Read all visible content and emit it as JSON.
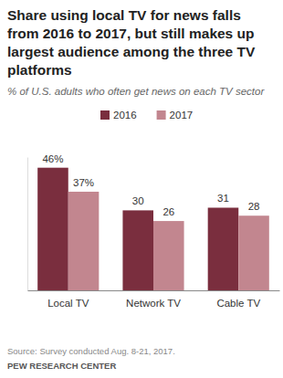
{
  "chart_data": {
    "type": "bar",
    "title": "Share using local TV for news falls from 2016 to 2017, but still makes up largest audience among the three TV platforms",
    "subtitle": "% of U.S. adults who often get news on each TV sector",
    "categories": [
      "Local TV",
      "Network TV",
      "Cable TV"
    ],
    "series": [
      {
        "name": "2016",
        "color": "#7a2e3e",
        "values": [
          46,
          30,
          31
        ],
        "value_labels": [
          "46%",
          "30",
          "31"
        ]
      },
      {
        "name": "2017",
        "color": "#c2868f",
        "values": [
          37,
          26,
          28
        ],
        "value_labels": [
          "37%",
          "26",
          "28"
        ]
      }
    ],
    "ylim": [
      0,
      50
    ],
    "tick_labels": "x",
    "data_labels": true,
    "legend": "top",
    "source": "Source: Survey conducted Aug. 8-21, 2017.",
    "credit": "PEW RESEARCH CENTER"
  }
}
